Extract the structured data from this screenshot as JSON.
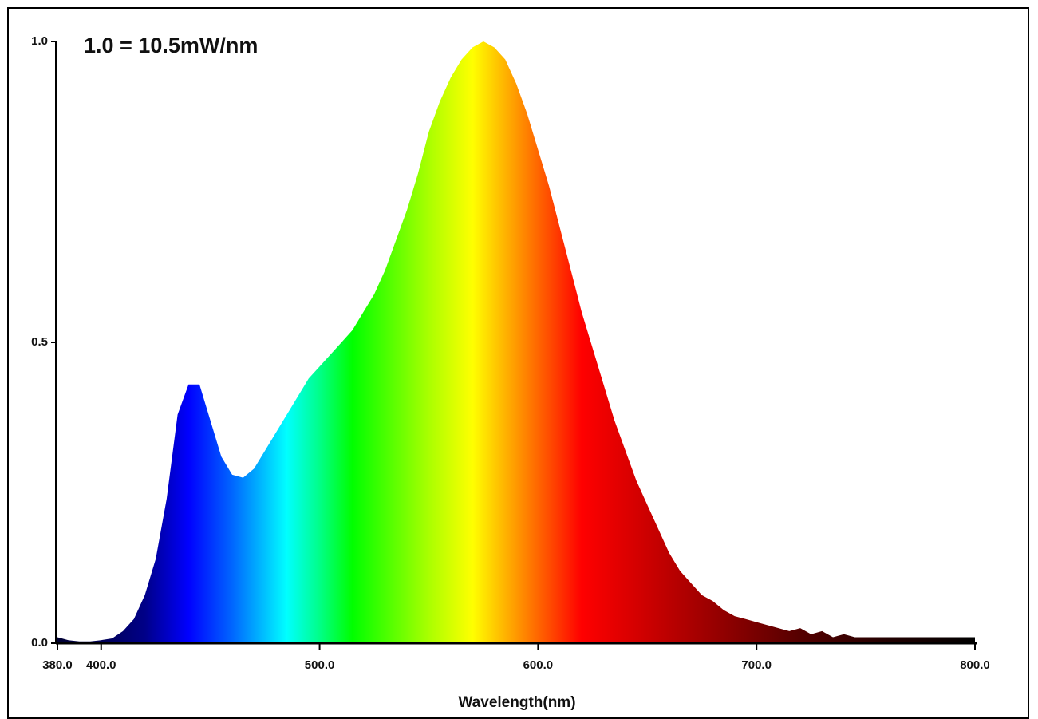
{
  "chart_data": {
    "type": "area",
    "annotation": "1.0 = 10.5mW/nm",
    "xlabel": "Wavelength(nm)",
    "ylabel": "",
    "xlim": [
      380,
      800
    ],
    "ylim": [
      0,
      1.0
    ],
    "x_tick_labels": [
      {
        "value": 380,
        "label": "380.0"
      },
      {
        "value": 400,
        "label": "400.0"
      },
      {
        "value": 500,
        "label": "500.0"
      },
      {
        "value": 600,
        "label": "600.0"
      },
      {
        "value": 700,
        "label": "700.0"
      },
      {
        "value": 800,
        "label": "800.0"
      }
    ],
    "y_tick_labels": [
      {
        "value": 0,
        "label": "0.0"
      },
      {
        "value": 0.5,
        "label": "0.5"
      },
      {
        "value": 1.0,
        "label": "1.0"
      }
    ],
    "grid": false,
    "fill": "visible-spectrum-gradient",
    "series": [
      {
        "x": [
          380,
          385,
          390,
          395,
          400,
          405,
          410,
          415,
          420,
          425,
          430,
          435,
          440,
          445,
          450,
          455,
          460,
          465,
          470,
          475,
          480,
          485,
          490,
          495,
          500,
          505,
          510,
          515,
          520,
          525,
          530,
          535,
          540,
          545,
          550,
          555,
          560,
          565,
          570,
          575,
          580,
          585,
          590,
          595,
          600,
          605,
          610,
          615,
          620,
          625,
          630,
          635,
          640,
          645,
          650,
          655,
          660,
          665,
          670,
          675,
          680,
          685,
          690,
          695,
          700,
          705,
          710,
          715,
          720,
          725,
          730,
          735,
          740,
          745,
          750,
          755,
          760,
          765,
          770,
          775,
          780,
          785,
          790,
          795,
          800
        ],
        "y": [
          0.01,
          0.005,
          0.003,
          0.003,
          0.005,
          0.008,
          0.02,
          0.04,
          0.08,
          0.14,
          0.24,
          0.38,
          0.43,
          0.43,
          0.37,
          0.31,
          0.28,
          0.275,
          0.29,
          0.32,
          0.35,
          0.38,
          0.41,
          0.44,
          0.46,
          0.48,
          0.5,
          0.52,
          0.55,
          0.58,
          0.62,
          0.67,
          0.72,
          0.78,
          0.85,
          0.9,
          0.94,
          0.97,
          0.99,
          1.0,
          0.99,
          0.97,
          0.93,
          0.88,
          0.82,
          0.76,
          0.69,
          0.62,
          0.55,
          0.49,
          0.43,
          0.37,
          0.32,
          0.27,
          0.23,
          0.19,
          0.15,
          0.12,
          0.1,
          0.08,
          0.07,
          0.055,
          0.045,
          0.04,
          0.035,
          0.03,
          0.025,
          0.02,
          0.025,
          0.015,
          0.02,
          0.01,
          0.015,
          0.01,
          0.01,
          0.01,
          0.01,
          0.01,
          0.01,
          0.01,
          0.01,
          0.01,
          0.01,
          0.01,
          0.01
        ]
      }
    ],
    "spectrum_colors": [
      {
        "nm": 380,
        "color": "#000033"
      },
      {
        "nm": 400,
        "color": "#000055"
      },
      {
        "nm": 420,
        "color": "#000088"
      },
      {
        "nm": 440,
        "color": "#0000ff"
      },
      {
        "nm": 460,
        "color": "#0066ff"
      },
      {
        "nm": 485,
        "color": "#00ffff"
      },
      {
        "nm": 500,
        "color": "#00ff88"
      },
      {
        "nm": 515,
        "color": "#00ff00"
      },
      {
        "nm": 550,
        "color": "#aaff00"
      },
      {
        "nm": 570,
        "color": "#ffff00"
      },
      {
        "nm": 590,
        "color": "#ff9900"
      },
      {
        "nm": 610,
        "color": "#ff3300"
      },
      {
        "nm": 620,
        "color": "#ff0000"
      },
      {
        "nm": 650,
        "color": "#cc0000"
      },
      {
        "nm": 680,
        "color": "#990000"
      },
      {
        "nm": 720,
        "color": "#550000"
      },
      {
        "nm": 760,
        "color": "#220000"
      },
      {
        "nm": 800,
        "color": "#000000"
      }
    ]
  }
}
